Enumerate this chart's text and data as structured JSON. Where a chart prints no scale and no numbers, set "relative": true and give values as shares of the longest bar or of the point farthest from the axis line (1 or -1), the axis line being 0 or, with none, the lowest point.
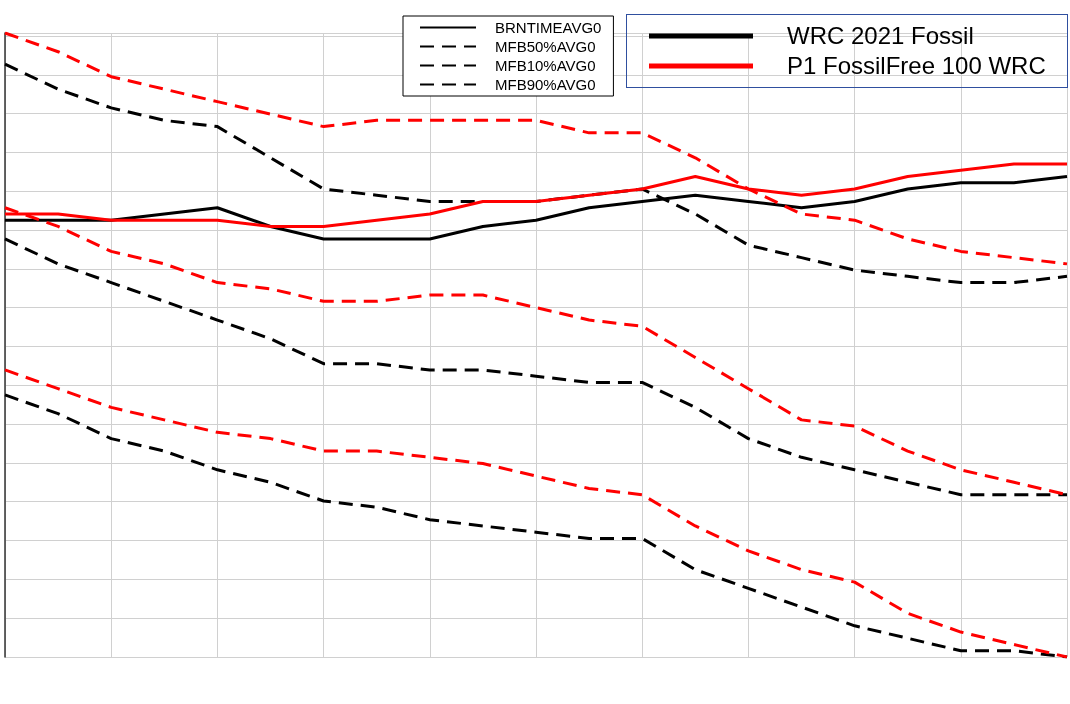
{
  "chart_data": {
    "type": "line",
    "relative": true,
    "grid": true,
    "legend": "top",
    "marker": "none",
    "categories": [
      null,
      null,
      null,
      null,
      null,
      null,
      null,
      null,
      null,
      null,
      null,
      null,
      null,
      null,
      null,
      null,
      null,
      null,
      null,
      null,
      null
    ],
    "series": [
      {
        "name": "BRNTIMEAVG0",
        "color": "#000000",
        "line_style": "solid",
        "values": [
          0.7,
          0.7,
          0.7,
          0.71,
          0.72,
          0.69,
          0.67,
          0.67,
          0.67,
          0.69,
          0.7,
          0.72,
          0.73,
          0.74,
          0.73,
          0.72,
          0.73,
          0.75,
          0.76,
          0.76,
          0.77
        ]
      },
      {
        "name": "MFB50%AVG0",
        "color": "#000000",
        "line_style": "dashed",
        "values": [
          0.67,
          0.63,
          0.6,
          0.57,
          0.54,
          0.51,
          0.47,
          0.47,
          0.46,
          0.46,
          0.45,
          0.44,
          0.44,
          0.4,
          0.35,
          0.32,
          0.3,
          0.28,
          0.26,
          0.26,
          0.26
        ]
      },
      {
        "name": "MFB10%AVG0",
        "color": "#000000",
        "line_style": "dashed",
        "values": [
          0.42,
          0.39,
          0.35,
          0.33,
          0.3,
          0.28,
          0.25,
          0.24,
          0.22,
          0.21,
          0.2,
          0.19,
          0.19,
          0.14,
          0.11,
          0.08,
          0.05,
          0.03,
          0.01,
          0.01,
          0.0
        ]
      },
      {
        "name": "MFB90%AVG0",
        "color": "#000000",
        "line_style": "dashed",
        "values": [
          0.95,
          0.91,
          0.88,
          0.86,
          0.85,
          0.8,
          0.75,
          0.74,
          0.73,
          0.73,
          0.73,
          0.74,
          0.75,
          0.71,
          0.66,
          0.64,
          0.62,
          0.61,
          0.6,
          0.6,
          0.61
        ]
      },
      {
        "color": "#ff0000",
        "line_style": "solid",
        "values": [
          0.71,
          0.71,
          0.7,
          0.7,
          0.7,
          0.69,
          0.69,
          0.7,
          0.71,
          0.73,
          0.73,
          0.74,
          0.75,
          0.77,
          0.75,
          0.74,
          0.75,
          0.77,
          0.78,
          0.79,
          0.79
        ]
      },
      {
        "color": "#ff0000",
        "line_style": "dashed",
        "values": [
          0.72,
          0.69,
          0.65,
          0.63,
          0.6,
          0.59,
          0.57,
          0.57,
          0.58,
          0.58,
          0.56,
          0.54,
          0.53,
          0.48,
          0.43,
          0.38,
          0.37,
          0.33,
          0.3,
          0.28,
          0.26
        ]
      },
      {
        "color": "#ff0000",
        "line_style": "dashed",
        "values": [
          0.46,
          0.43,
          0.4,
          0.38,
          0.36,
          0.35,
          0.33,
          0.33,
          0.32,
          0.31,
          0.29,
          0.27,
          0.26,
          0.21,
          0.17,
          0.14,
          0.12,
          0.07,
          0.04,
          0.02,
          0
        ]
      },
      {
        "color": "#ff0000",
        "line_style": "dashed",
        "values": [
          1,
          0.97,
          0.93,
          0.91,
          0.89,
          0.87,
          0.85,
          0.86,
          0.86,
          0.86,
          0.86,
          0.84,
          0.84,
          0.8,
          0.75,
          0.71,
          0.7,
          0.67,
          0.65,
          0.64,
          0.63
        ]
      }
    ],
    "annotations": [
      "WRC 2021 Fossil",
      "P1 FossilFree 100 WRC"
    ]
  }
}
